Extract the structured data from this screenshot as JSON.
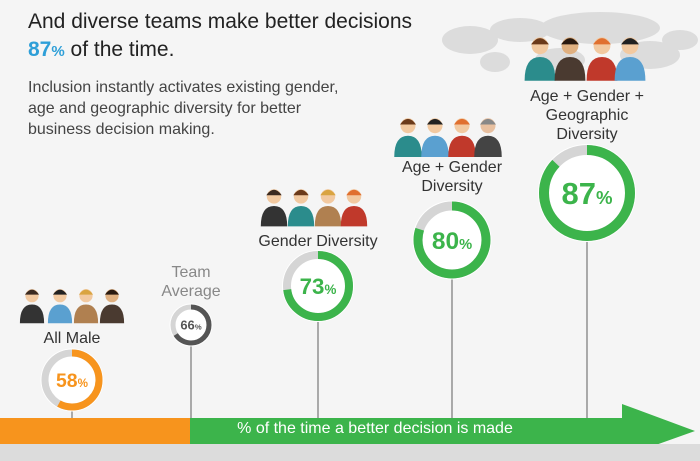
{
  "header": {
    "title_line1": "And diverse teams make better decisions",
    "title_highlight": "87",
    "title_highlight_unit": "%",
    "title_line2_rest": " of the time.",
    "body": "Inclusion instantly activates existing gender, age and geographic diversity for better business decision making."
  },
  "bar_label": "% of the time a better decision is made",
  "colors": {
    "orange": "#f7941d",
    "green": "#3cb44b",
    "grey": "#555555",
    "track": "#d5d5d5",
    "accent": "#2e9fd8"
  },
  "chart_data": {
    "type": "donut-timeline",
    "items": [
      {
        "label": "All Male",
        "value": 58,
        "unit": "%",
        "color": "#f7941d",
        "icon": "four-men-icon"
      },
      {
        "label": "Team Average",
        "value": 66,
        "unit": "%",
        "color": "#555555",
        "icon": null
      },
      {
        "label": "Gender Diversity",
        "value": 73,
        "unit": "%",
        "color": "#3cb44b",
        "icon": "mixed-gender-team-icon"
      },
      {
        "label": "Age + Gender Diversity",
        "value": 80,
        "unit": "%",
        "color": "#3cb44b",
        "icon": "mixed-age-gender-team-icon"
      },
      {
        "label": "Age + Gender + Geographic Diversity",
        "value": 87,
        "unit": "%",
        "color": "#3cb44b",
        "icon": "global-team-world-map-icon"
      }
    ]
  }
}
